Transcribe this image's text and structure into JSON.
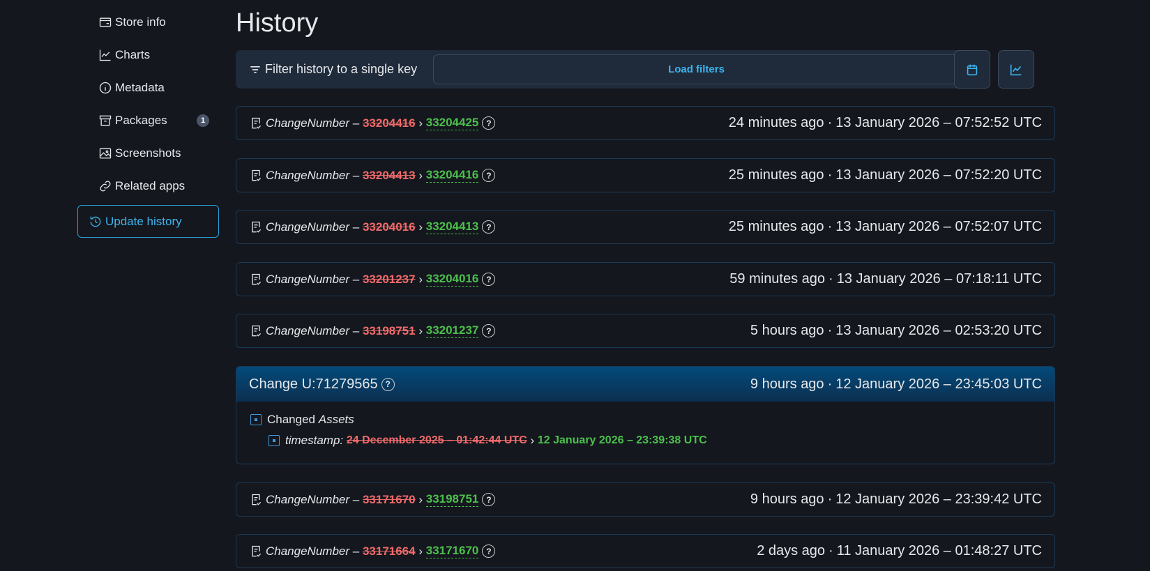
{
  "sidebar": {
    "items": [
      {
        "label": "Store info",
        "icon": "store-icon"
      },
      {
        "label": "Charts",
        "icon": "chart-icon"
      },
      {
        "label": "Metadata",
        "icon": "info-icon"
      },
      {
        "label": "Packages",
        "icon": "package-icon",
        "badge": "1"
      },
      {
        "label": "Screenshots",
        "icon": "image-icon"
      },
      {
        "label": "Related apps",
        "icon": "link-icon"
      },
      {
        "label": "Update history",
        "icon": "history-icon",
        "active": true
      }
    ]
  },
  "page": {
    "title": "History"
  },
  "filter": {
    "label": "Filter history to a single key",
    "load_label": "Load filters"
  },
  "rows": [
    {
      "key": "ChangeNumber",
      "old": "33204416",
      "new": "33204425",
      "ago": "24 minutes ago",
      "date": "13 January 2026 – 07:52:52 UTC"
    },
    {
      "key": "ChangeNumber",
      "old": "33204413",
      "new": "33204416",
      "ago": "25 minutes ago",
      "date": "13 January 2026 – 07:52:20 UTC"
    },
    {
      "key": "ChangeNumber",
      "old": "33204016",
      "new": "33204413",
      "ago": "25 minutes ago",
      "date": "13 January 2026 – 07:52:07 UTC"
    },
    {
      "key": "ChangeNumber",
      "old": "33201237",
      "new": "33204016",
      "ago": "59 minutes ago",
      "date": "13 January 2026 – 07:18:11 UTC"
    },
    {
      "key": "ChangeNumber",
      "old": "33198751",
      "new": "33201237",
      "ago": "5 hours ago",
      "date": "13 January 2026 – 02:53:20 UTC"
    },
    {
      "key": "ChangeNumber",
      "old": "33171670",
      "new": "33198751",
      "ago": "9 hours ago",
      "date": "12 January 2026 – 23:39:42 UTC"
    },
    {
      "key": "ChangeNumber",
      "old": "33171664",
      "new": "33171670",
      "ago": "2 days ago",
      "date": "11 January 2026 – 01:48:27 UTC"
    }
  ],
  "change": {
    "title": "Change U:71279565",
    "ago": "9 hours ago",
    "date": "12 January 2026 – 23:45:03 UTC",
    "changed_prefix": "Changed",
    "section": "Assets",
    "field": "timestamp:",
    "old": "24 December 2025 – 01:42:44 UTC",
    "new": "12 January 2026 – 23:39:38 UTC"
  },
  "sym": {
    "dash": "–",
    "arrow": "›",
    "dot": "·",
    "q": "?"
  }
}
